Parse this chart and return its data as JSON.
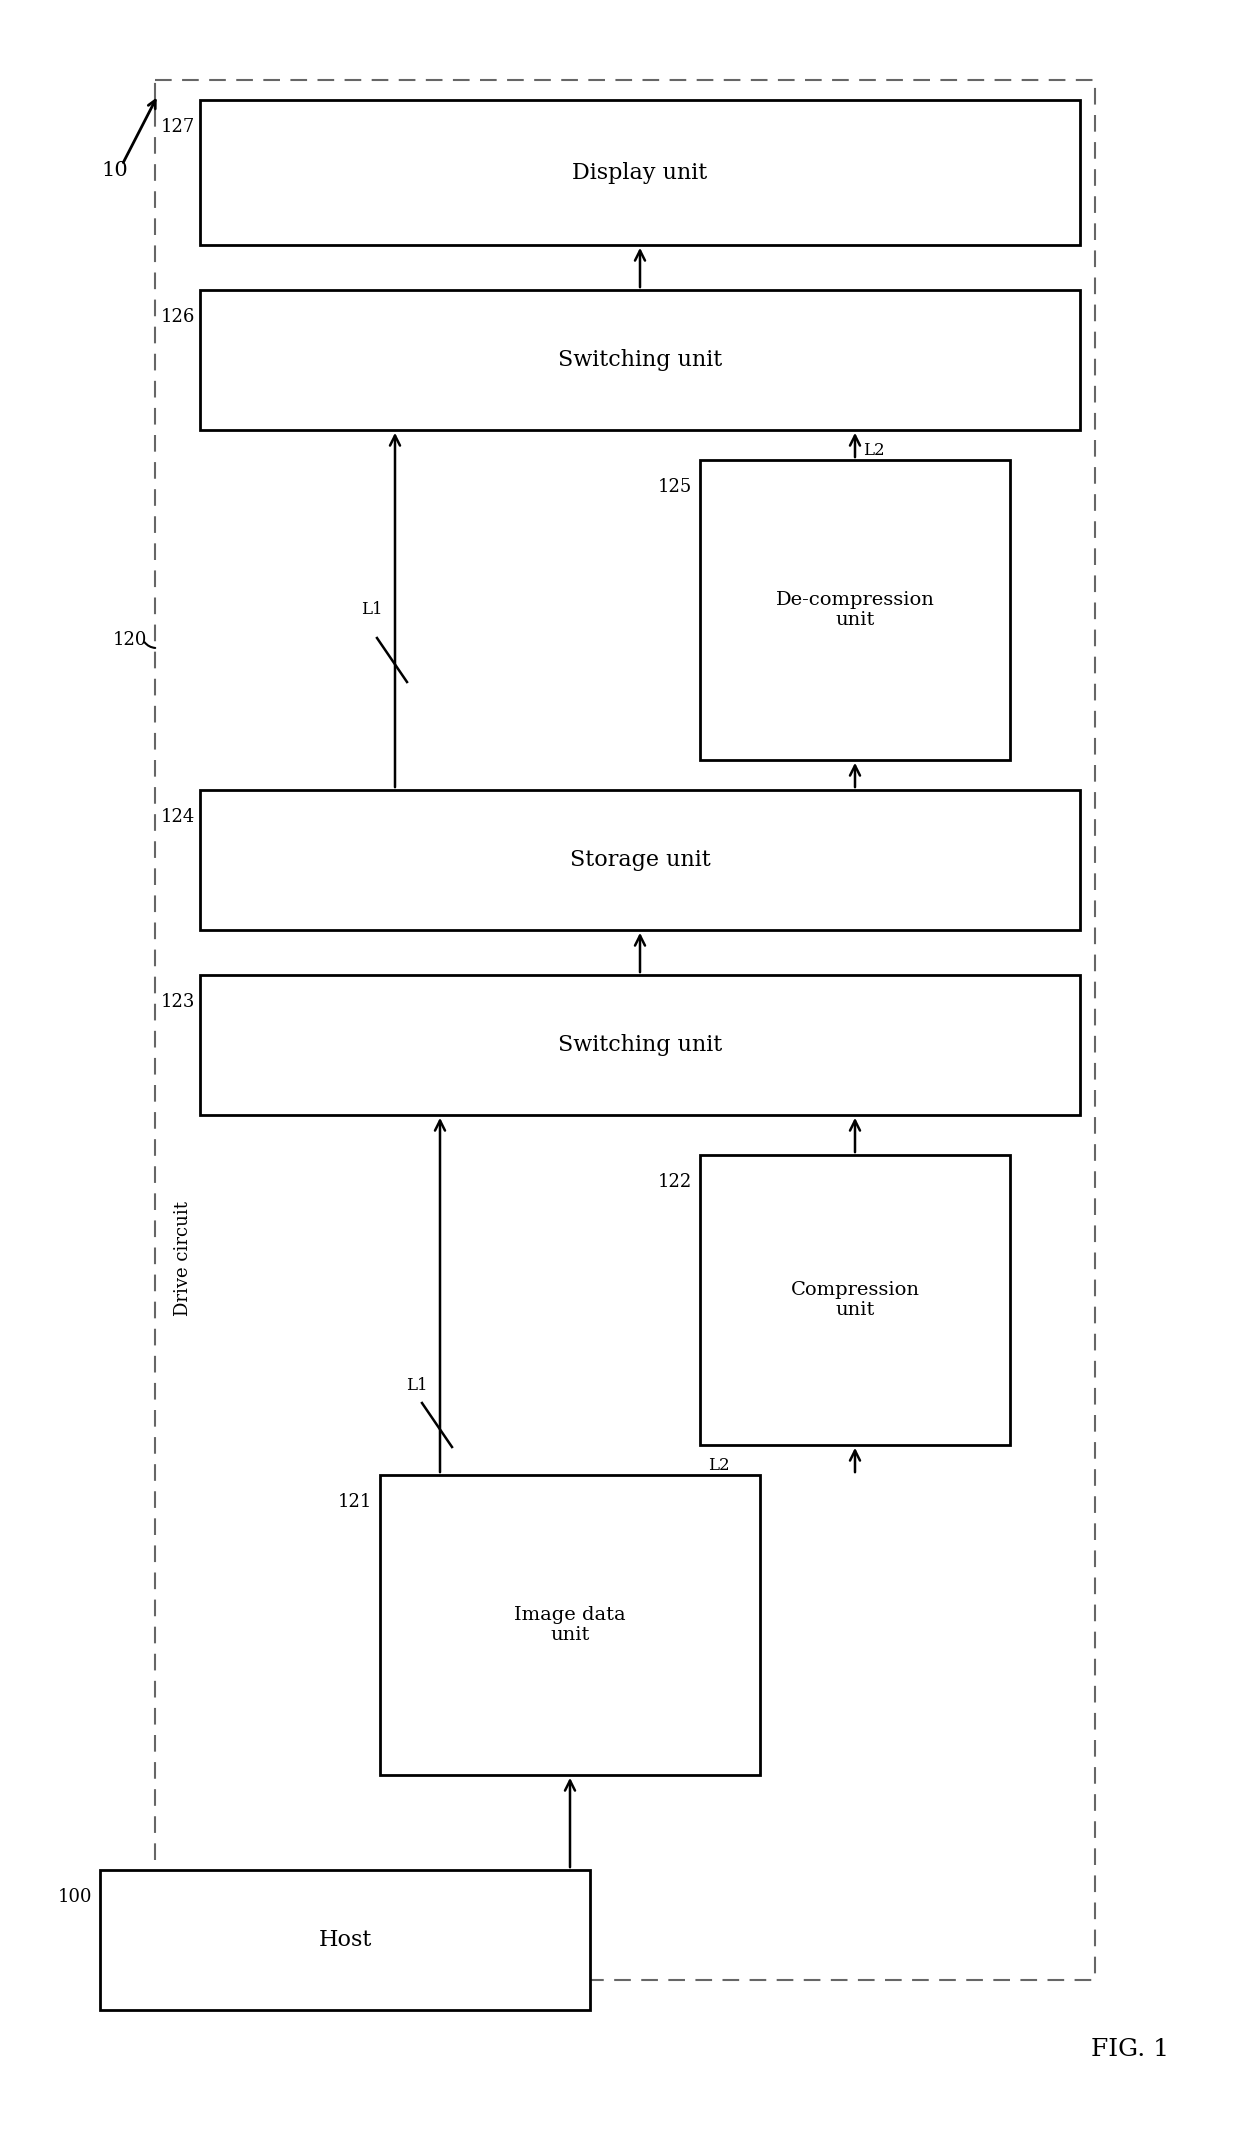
{
  "fig_width": 12.4,
  "fig_height": 21.43,
  "bg_color": "#ffffff",
  "title": "FIG. 1",
  "label_10": "10",
  "label_120": "120",
  "label_100": "100",
  "label_121": "121",
  "label_122": "122",
  "label_123": "123",
  "label_124": "124",
  "label_125": "125",
  "label_126": "126",
  "label_127": "127",
  "label_L1_lower": "L1",
  "label_L2_lower": "L2",
  "label_L1_upper": "L1",
  "label_L2_upper": "L2",
  "label_drive_circuit": "Drive circuit",
  "box_host_label": "Host",
  "box_image_data_label": "Image data\nunit",
  "box_compression_label": "Compression\nunit",
  "box_switching_lower_label": "Switching unit",
  "box_storage_label": "Storage unit",
  "box_decompression_label": "De-compression\nunit",
  "box_switching_upper_label": "Switching unit",
  "box_display_label": "Display unit",
  "box_color": "#000000",
  "box_fill": "#ffffff",
  "arrow_color": "#000000",
  "dashed_border_color": "#666666",
  "text_color": "#000000"
}
